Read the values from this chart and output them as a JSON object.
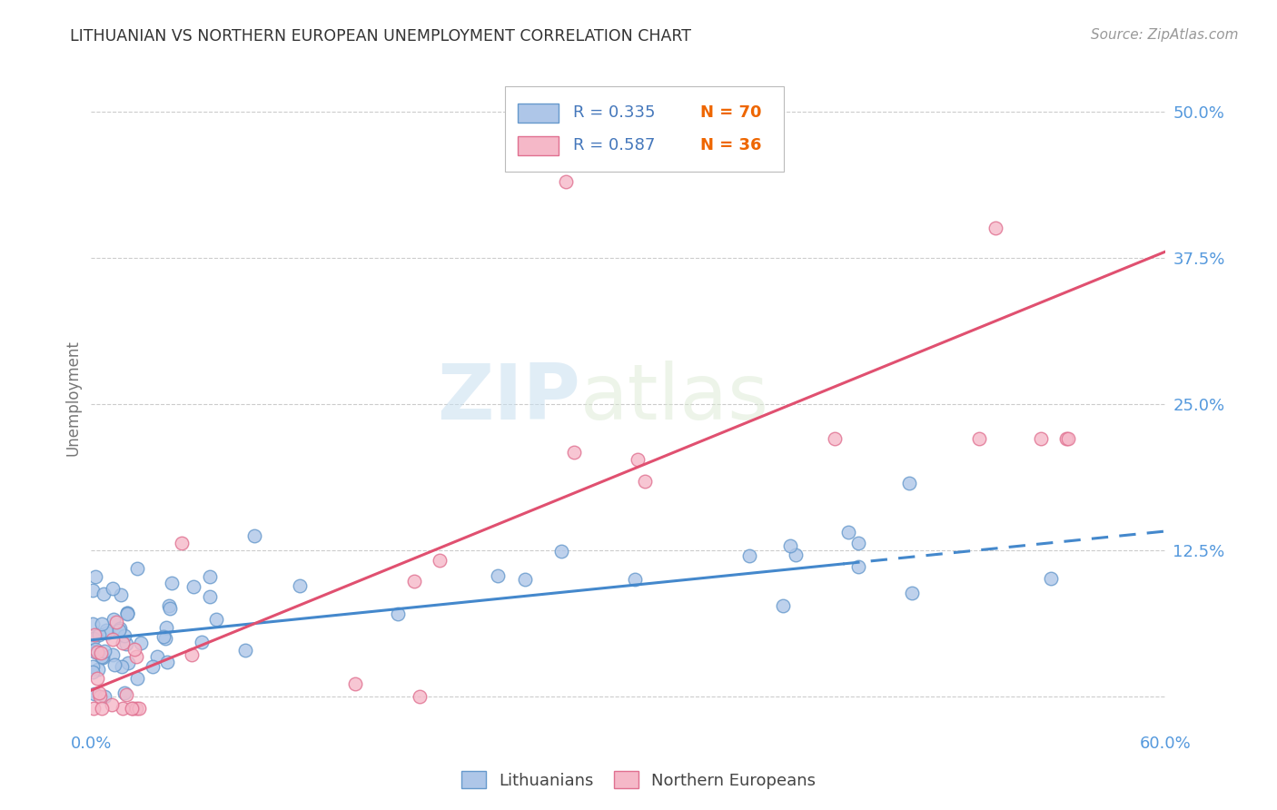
{
  "title": "LITHUANIAN VS NORTHERN EUROPEAN UNEMPLOYMENT CORRELATION CHART",
  "source": "Source: ZipAtlas.com",
  "ylabel": "Unemployment",
  "xlim": [
    0.0,
    0.6
  ],
  "ylim": [
    -0.025,
    0.535
  ],
  "watermark_zip": "ZIP",
  "watermark_atlas": "atlas",
  "series1_color": "#aec6e8",
  "series1_edge": "#6699cc",
  "series2_color": "#f5b8c8",
  "series2_edge": "#e07090",
  "line1_color": "#4488cc",
  "line2_color": "#e05070",
  "R1": 0.335,
  "N1": 70,
  "R2": 0.587,
  "N2": 36,
  "legend1": "Lithuanians",
  "legend2": "Northern Europeans",
  "background_color": "#ffffff",
  "grid_color": "#cccccc",
  "title_color": "#333333",
  "axis_label_color": "#5599dd",
  "r_text_color": "#4477bb",
  "n_text_color": "#ee6600",
  "ylabel_color": "#777777",
  "source_color": "#999999",
  "line1_solid_end": 0.42,
  "line1_intercept": 0.048,
  "line1_slope": 0.155,
  "line2_intercept": 0.005,
  "line2_slope": 0.625
}
